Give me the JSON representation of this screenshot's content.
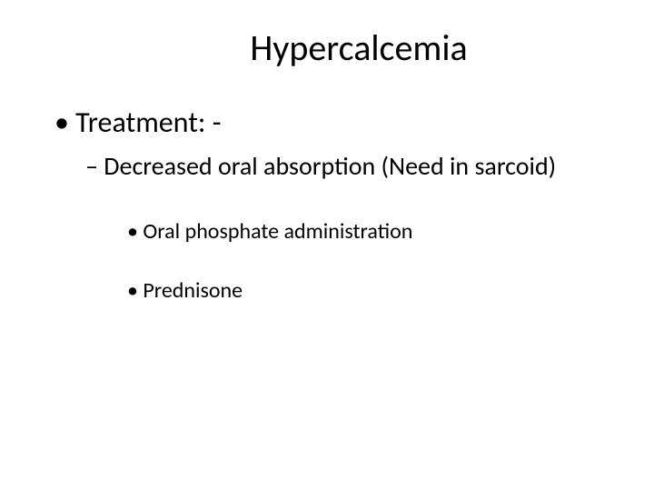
{
  "slide": {
    "title": "Hypercalcemia",
    "bullet_level1": "Treatment: -",
    "bullet_level2": "Decreased oral absorption  (Need in sarcoid)",
    "bullet_level3_a": "Oral phosphate administration",
    "bullet_level3_b": "Prednisone"
  },
  "style": {
    "background_color": "#ffffff",
    "text_color": "#000000",
    "title_fontsize": 40,
    "level1_fontsize": 32,
    "level2_fontsize": 28,
    "level3_fontsize": 24,
    "font_family": "Calibri"
  }
}
